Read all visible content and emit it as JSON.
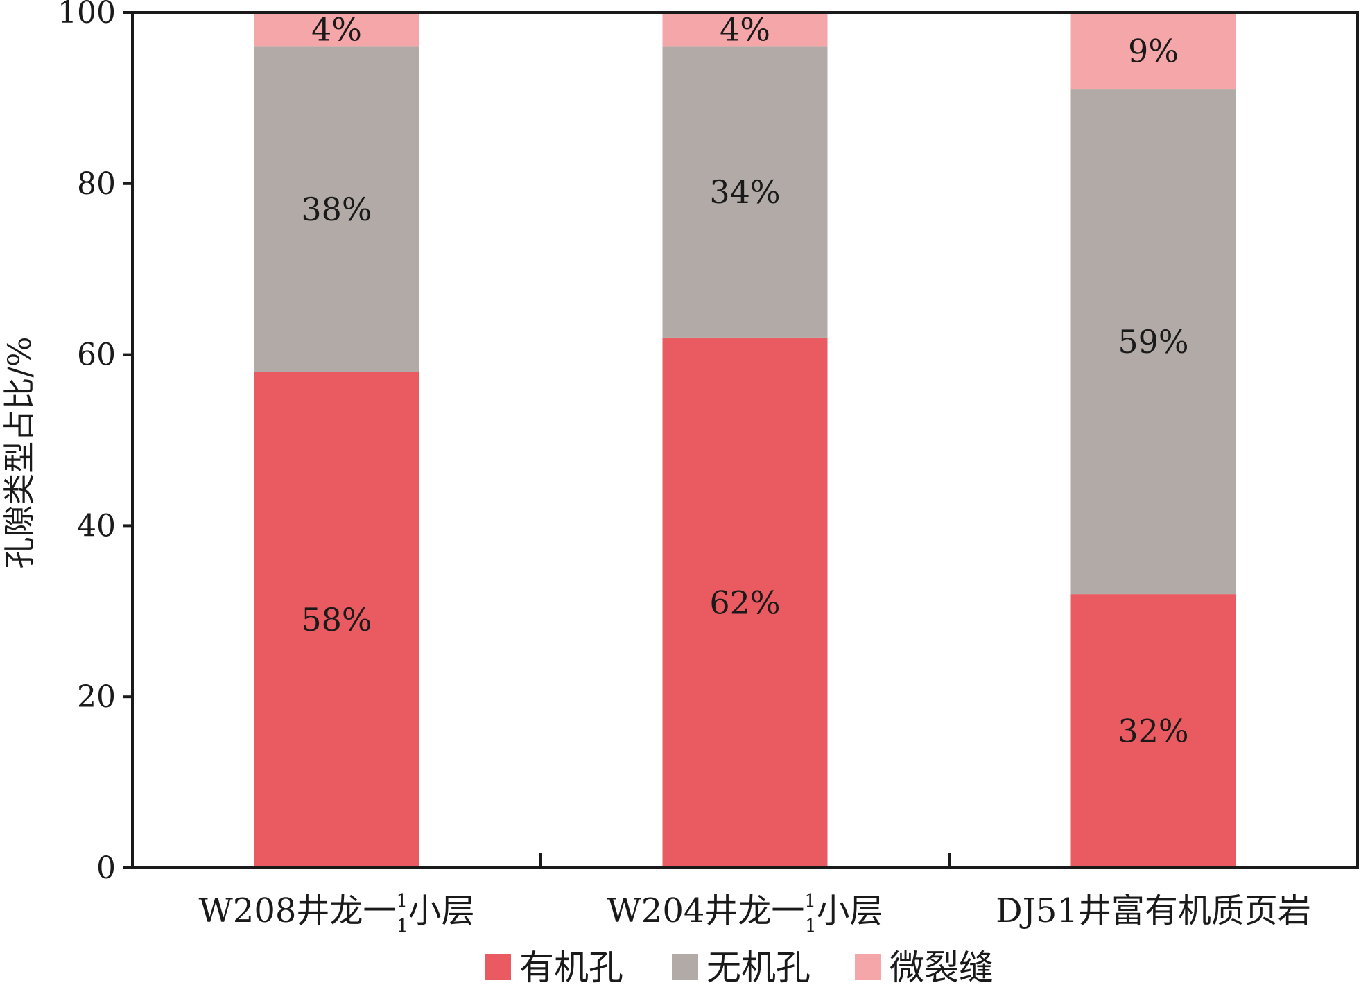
{
  "chart_data": {
    "type": "bar",
    "stacked": true,
    "ylabel": "孔隙类型占比/%",
    "ylim": [
      0,
      100
    ],
    "yticks": [
      0,
      20,
      40,
      60,
      80,
      100
    ],
    "grid": false,
    "legend_position": "bottom",
    "categories": [
      {
        "prefix": "W208井龙一",
        "sup": "1",
        "sub": "1",
        "suffix": "小层"
      },
      {
        "prefix": "W204井龙一",
        "sup": "1",
        "sub": "1",
        "suffix": "小层"
      },
      {
        "prefix": "DJ51井富有机质页岩",
        "sup": "",
        "sub": "",
        "suffix": ""
      }
    ],
    "series": [
      {
        "name": "有机孔",
        "color": "#e95b61",
        "values": [
          58,
          62,
          32
        ],
        "labels": [
          "58%",
          "62%",
          "32%"
        ]
      },
      {
        "name": "无机孔",
        "color": "#b1aaa7",
        "values": [
          38,
          34,
          59
        ],
        "labels": [
          "38%",
          "34%",
          "59%"
        ]
      },
      {
        "name": "微裂缝",
        "color": "#f4a6a8",
        "values": [
          4,
          4,
          9
        ],
        "labels": [
          "4%",
          "4%",
          "9%"
        ]
      }
    ]
  }
}
